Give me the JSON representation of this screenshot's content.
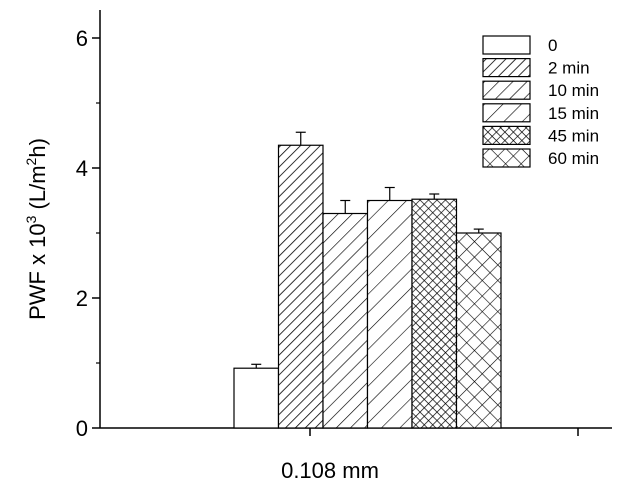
{
  "chart_data": {
    "type": "bar",
    "categories": [
      "0.108 mm"
    ],
    "series": [
      {
        "name": "0",
        "values": [
          0.92
        ],
        "error": [
          0.06
        ],
        "pattern": "none"
      },
      {
        "name": "2 min",
        "values": [
          4.35
        ],
        "error": [
          0.2
        ],
        "pattern": "diag-dense"
      },
      {
        "name": "10 min",
        "values": [
          3.3
        ],
        "error": [
          0.2
        ],
        "pattern": "diag"
      },
      {
        "name": "15 min",
        "values": [
          3.5
        ],
        "error": [
          0.2
        ],
        "pattern": "diag-sparse"
      },
      {
        "name": "45 min",
        "values": [
          3.52
        ],
        "error": [
          0.08
        ],
        "pattern": "crosshatch-dense"
      },
      {
        "name": "60 min",
        "values": [
          3.0
        ],
        "error": [
          0.06
        ],
        "pattern": "crosshatch"
      }
    ],
    "y_ticks": [
      "0",
      "2",
      "4",
      "6"
    ],
    "ylim": [
      0,
      6
    ],
    "ylabel": {
      "prefix": "PWF x 10",
      "exp": "3",
      "unit_open": " (L/m",
      "unit_exp": "2",
      "unit_close": "h)"
    },
    "legend_position": "top-right",
    "grid": false,
    "colors": {
      "bar_stroke": "#000000",
      "bar_fill": "#ffffff",
      "axis": "#000000"
    }
  }
}
